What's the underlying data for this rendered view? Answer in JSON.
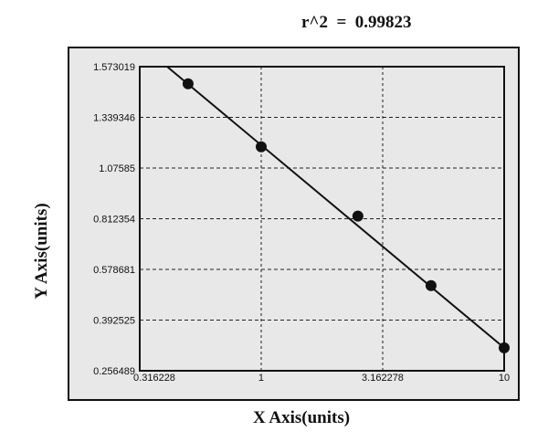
{
  "chart_data": {
    "type": "scatter",
    "title": "r^2  =  0.99823",
    "xlabel": "X Axis(units)",
    "ylabel": "Y Axis(units)",
    "x_scale": "log",
    "xlim": [
      0.316228,
      10
    ],
    "ylim": [
      0.256489,
      1.573019
    ],
    "x_ticks": [
      "0.316228",
      "1",
      "3.162278",
      "10"
    ],
    "y_ticks": [
      "1.573019",
      "1.339346",
      "1.07585",
      "0.812354",
      "0.578681",
      "0.392525",
      "0.256489"
    ],
    "grid": true,
    "points": [
      {
        "x": 0.5,
        "y": 1.494
      },
      {
        "x": 1,
        "y": 1.186
      },
      {
        "x": 2.5,
        "y": 0.826
      },
      {
        "x": 5,
        "y": 0.519
      },
      {
        "x": 10,
        "y": 0.318
      }
    ],
    "fit_line": [
      [
        0.41,
        1.573019
      ],
      [
        10,
        0.318
      ]
    ],
    "colors": {
      "background": "#e8e8e8",
      "marks": "#111111"
    }
  }
}
